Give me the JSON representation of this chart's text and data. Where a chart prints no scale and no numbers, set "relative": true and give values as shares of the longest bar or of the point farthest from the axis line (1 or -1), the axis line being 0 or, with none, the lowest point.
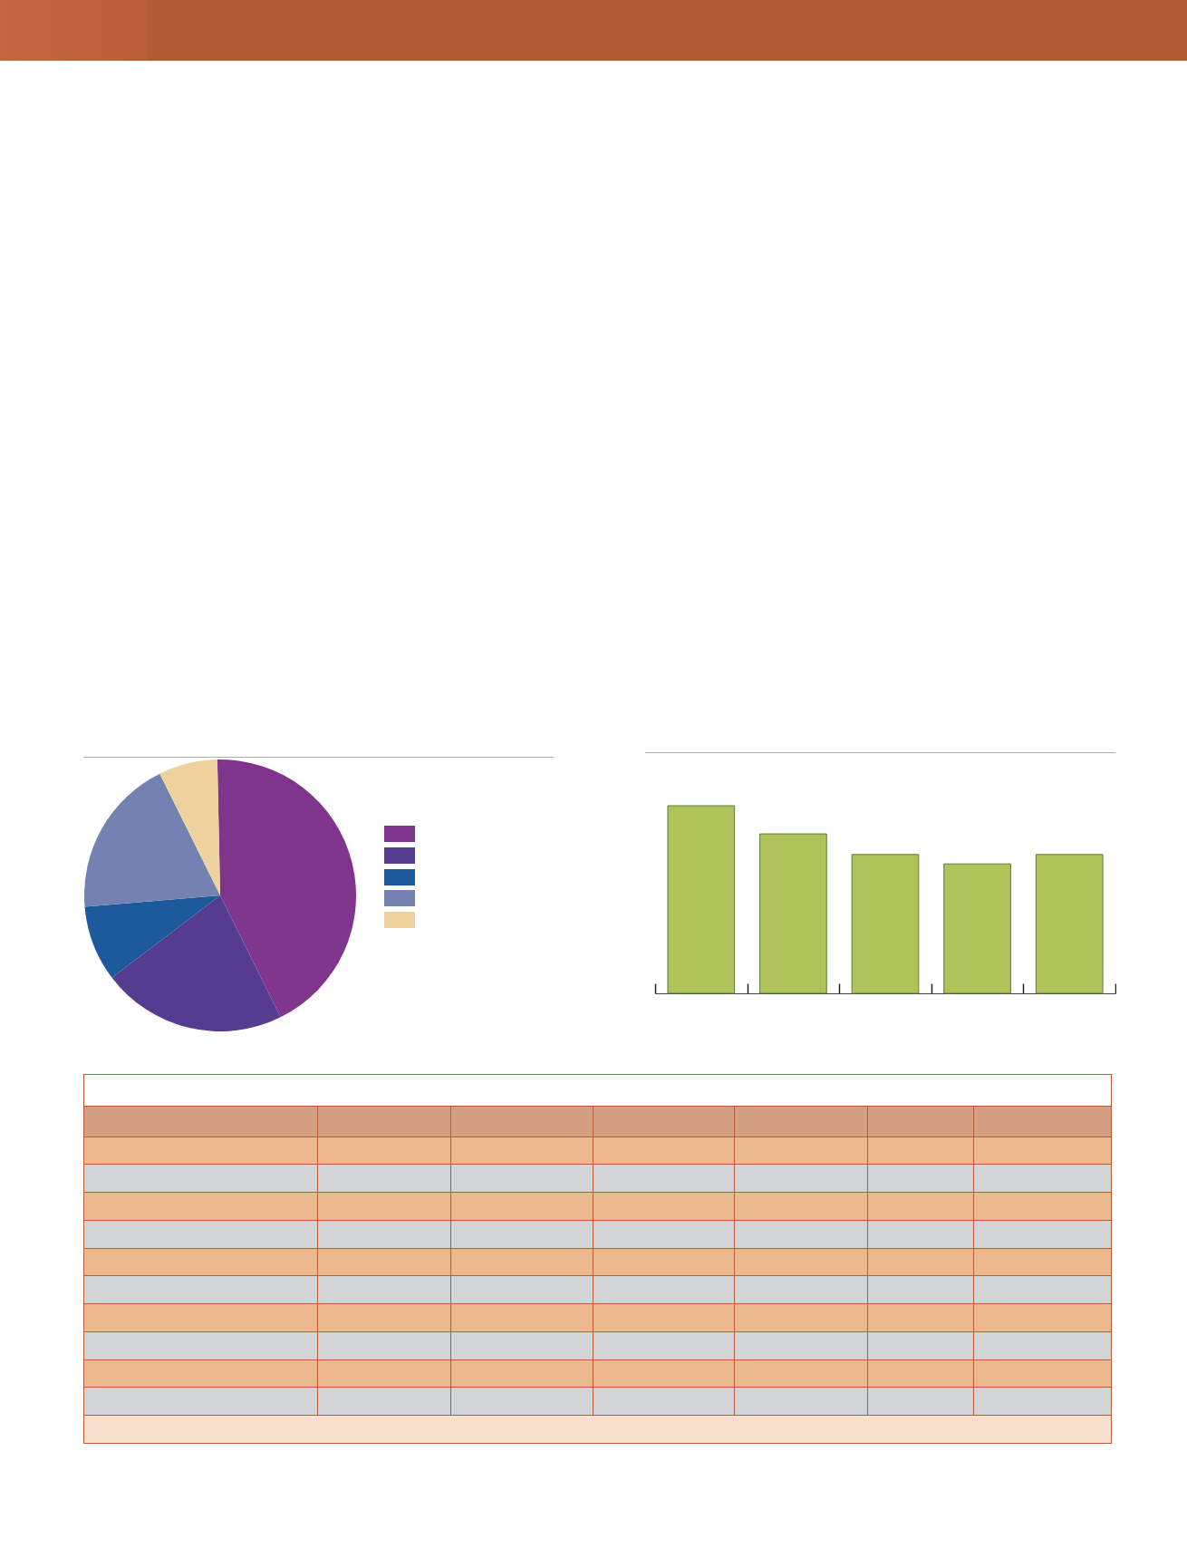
{
  "chart_data": [
    {
      "type": "pie",
      "categories": [
        null,
        null,
        null,
        null,
        null
      ],
      "values": [
        43,
        22,
        9,
        19,
        7
      ],
      "colors": [
        "#7f358b",
        "#553c8f",
        "#1d5a9b",
        "#7482b2",
        "#eed19d"
      ]
    },
    {
      "type": "bar",
      "categories": [
        null,
        null,
        null,
        null,
        null
      ],
      "values": [
        1,
        0.85,
        0.74,
        0.69,
        0.74
      ],
      "color": "#b0c35b",
      "relative": true
    }
  ]
}
